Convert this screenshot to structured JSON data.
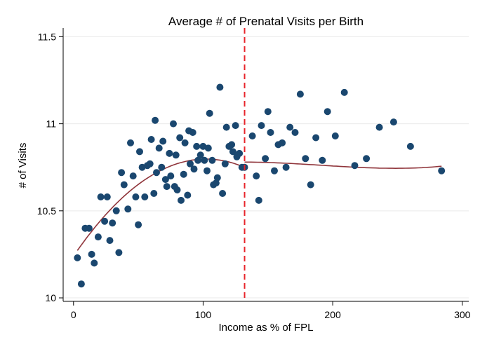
{
  "chart_data": {
    "type": "scatter",
    "title": "Average # of Prenatal Visits per Birth",
    "xlabel": "Income as % of FPL",
    "ylabel": "# of Visits",
    "xlim": [
      -8,
      305
    ],
    "ylim": [
      9.98,
      11.55
    ],
    "x_ticks": [
      0,
      100,
      200,
      300
    ],
    "y_ticks": [
      10,
      10.5,
      11,
      11.5
    ],
    "x_tick_labels": [
      "0",
      "100",
      "200",
      "300"
    ],
    "y_tick_labels": [
      "10",
      "10.5",
      "11",
      "11.5"
    ],
    "grid": "horizontal",
    "points": [
      [
        3,
        10.23
      ],
      [
        6,
        10.08
      ],
      [
        9,
        10.4
      ],
      [
        12,
        10.4
      ],
      [
        14,
        10.25
      ],
      [
        16,
        10.2
      ],
      [
        19,
        10.35
      ],
      [
        21,
        10.58
      ],
      [
        24,
        10.44
      ],
      [
        26,
        10.58
      ],
      [
        28,
        10.33
      ],
      [
        30,
        10.43
      ],
      [
        33,
        10.5
      ],
      [
        35,
        10.26
      ],
      [
        37,
        10.72
      ],
      [
        39,
        10.65
      ],
      [
        42,
        10.51
      ],
      [
        44,
        10.89
      ],
      [
        46,
        10.7
      ],
      [
        48,
        10.58
      ],
      [
        50,
        10.42
      ],
      [
        51,
        10.84
      ],
      [
        53,
        10.75
      ],
      [
        55,
        10.58
      ],
      [
        57,
        10.76
      ],
      [
        59,
        10.77
      ],
      [
        60,
        10.91
      ],
      [
        62,
        10.6
      ],
      [
        63,
        11.02
      ],
      [
        64,
        10.72
      ],
      [
        66,
        10.86
      ],
      [
        68,
        10.75
      ],
      [
        69,
        10.9
      ],
      [
        71,
        10.68
      ],
      [
        72,
        10.64
      ],
      [
        74,
        10.83
      ],
      [
        75,
        10.7
      ],
      [
        77,
        11.0
      ],
      [
        78,
        10.64
      ],
      [
        79,
        10.82
      ],
      [
        80,
        10.62
      ],
      [
        82,
        10.92
      ],
      [
        83,
        10.56
      ],
      [
        85,
        10.71
      ],
      [
        86,
        10.89
      ],
      [
        88,
        10.59
      ],
      [
        89,
        10.96
      ],
      [
        90,
        10.77
      ],
      [
        92,
        10.95
      ],
      [
        93,
        10.74
      ],
      [
        95,
        10.87
      ],
      [
        96,
        10.79
      ],
      [
        98,
        10.82
      ],
      [
        100,
        10.87
      ],
      [
        101,
        10.79
      ],
      [
        103,
        10.73
      ],
      [
        104,
        10.86
      ],
      [
        105,
        11.06
      ],
      [
        107,
        10.79
      ],
      [
        108,
        10.65
      ],
      [
        110,
        10.66
      ],
      [
        111,
        10.69
      ],
      [
        113,
        11.21
      ],
      [
        115,
        10.6
      ],
      [
        117,
        10.77
      ],
      [
        118,
        10.98
      ],
      [
        120,
        10.87
      ],
      [
        122,
        10.88
      ],
      [
        123,
        10.84
      ],
      [
        125,
        10.99
      ],
      [
        126,
        10.81
      ],
      [
        128,
        10.83
      ],
      [
        130,
        10.75
      ],
      [
        132,
        10.75
      ],
      [
        138,
        10.93
      ],
      [
        141,
        10.7
      ],
      [
        143,
        10.56
      ],
      [
        145,
        10.99
      ],
      [
        148,
        10.8
      ],
      [
        150,
        11.07
      ],
      [
        152,
        10.95
      ],
      [
        155,
        10.73
      ],
      [
        158,
        10.88
      ],
      [
        161,
        10.89
      ],
      [
        164,
        10.75
      ],
      [
        167,
        10.98
      ],
      [
        171,
        10.95
      ],
      [
        175,
        11.17
      ],
      [
        179,
        10.8
      ],
      [
        183,
        10.65
      ],
      [
        187,
        10.92
      ],
      [
        192,
        10.79
      ],
      [
        196,
        11.07
      ],
      [
        202,
        10.93
      ],
      [
        209,
        11.18
      ],
      [
        217,
        10.76
      ],
      [
        226,
        10.8
      ],
      [
        236,
        10.98
      ],
      [
        247,
        11.01
      ],
      [
        260,
        10.87
      ],
      [
        284,
        10.73
      ]
    ],
    "fit_lines": [
      {
        "x_range": [
          3,
          132
        ],
        "coeffs": [
          10.24,
          0.0109,
          -5.33e-05
        ]
      },
      {
        "x_range": [
          132,
          284
        ],
        "coeffs": [
          10.78,
          0.0,
          -7.9e-06,
          4.52e-08
        ]
      }
    ],
    "reference_line": {
      "x": 132,
      "orientation": "vertical",
      "style": "dashed"
    },
    "colors": {
      "points": "#1a476f",
      "fit": "#90353b",
      "reference": "#e8242b",
      "grid": "#eaeaea"
    }
  }
}
